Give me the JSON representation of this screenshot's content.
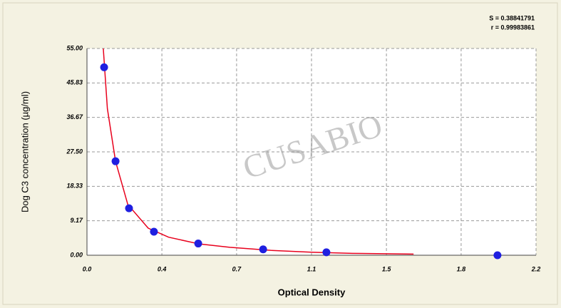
{
  "chart_data": {
    "type": "scatter",
    "x_label": "Optical Density",
    "y_label": "Dog C3 concentration (µg/ml)",
    "annotations": [
      "S = 0.38841791",
      "r = 0.99983861"
    ],
    "watermark": "CUSABIO",
    "xlim": [
      0,
      2.2
    ],
    "xticks": [
      {
        "value": 0,
        "label": "0.0"
      },
      {
        "value": 0.367,
        "label": "0.4"
      },
      {
        "value": 0.733,
        "label": "0.7"
      },
      1.1,
      {
        "value": 1.467,
        "label": "1.5"
      },
      {
        "value": 1.833,
        "label": "1.8"
      },
      2.2
    ],
    "ylim": [
      0,
      55
    ],
    "yticks": [
      {
        "value": 0,
        "label": "0.00"
      },
      9.17,
      18.33,
      {
        "value": 27.5,
        "label": "27.50"
      },
      36.67,
      45.83,
      {
        "value": 55,
        "label": "55.00"
      }
    ],
    "grid": true,
    "points": {
      "color": "#1f1fe0",
      "x": [
        0.084,
        0.14,
        0.206,
        0.328,
        0.545,
        0.863,
        1.173,
        2.011
      ],
      "y": [
        50,
        25,
        12.5,
        6.25,
        3.12,
        1.56,
        0.78,
        0
      ]
    },
    "fit": {
      "color": "#e8001c",
      "x": [
        0.08,
        0.1,
        0.14,
        0.2,
        0.3,
        0.4,
        0.55,
        0.7,
        0.9,
        1.1,
        1.3,
        1.6
      ],
      "y": [
        55,
        39,
        25,
        13.5,
        7.2,
        4.8,
        3.0,
        2.1,
        1.3,
        0.8,
        0.5,
        0.3
      ]
    }
  }
}
